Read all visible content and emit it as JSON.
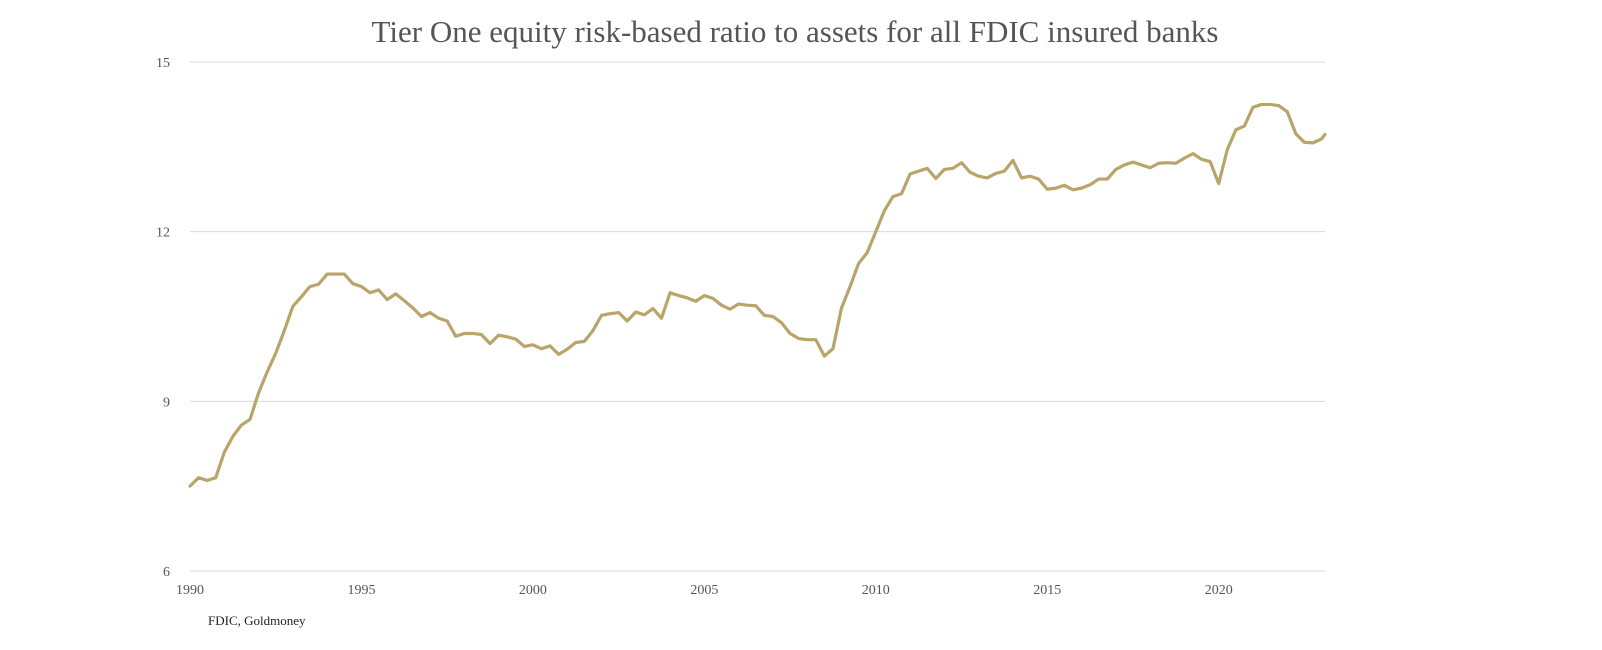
{
  "chart_data": {
    "type": "line",
    "title": "Tier One equity risk-based ratio to assets for all FDIC insured banks",
    "xlabel": "",
    "ylabel": "",
    "source": "FDIC, Goldmoney",
    "xlim": [
      1990,
      2023.1
    ],
    "ylim": [
      6,
      15
    ],
    "x_ticks": [
      1990,
      1995,
      2000,
      2005,
      2010,
      2015,
      2020
    ],
    "y_ticks": [
      6,
      9,
      12,
      15
    ],
    "grid": "horizontal",
    "legend": "none",
    "color": "#b9a46a",
    "series": [
      {
        "x": [
          1990.0,
          1990.25,
          1990.5,
          1990.75,
          1991.0,
          1991.25,
          1991.5,
          1991.75,
          1992.0,
          1992.25,
          1992.5,
          1992.75,
          1993.0,
          1993.25,
          1993.5,
          1993.75,
          1994.0,
          1994.25,
          1994.5,
          1994.75,
          1995.0,
          1995.25,
          1995.5,
          1995.75,
          1996.0,
          1996.25,
          1996.5,
          1996.75,
          1997.0,
          1997.25,
          1997.5,
          1997.75,
          1998.0,
          1998.25,
          1998.5,
          1998.75,
          1999.0,
          1999.25,
          1999.5,
          1999.75,
          2000.0,
          2000.25,
          2000.5,
          2000.75,
          2001.0,
          2001.25,
          2001.5,
          2001.75,
          2002.0,
          2002.25,
          2002.5,
          2002.75,
          2003.0,
          2003.25,
          2003.5,
          2003.75,
          2004.0,
          2004.25,
          2004.5,
          2004.75,
          2005.0,
          2005.25,
          2005.5,
          2005.75,
          2006.0,
          2006.25,
          2006.5,
          2006.75,
          2007.0,
          2007.25,
          2007.5,
          2007.75,
          2008.0,
          2008.25,
          2008.5,
          2008.75,
          2009.0,
          2009.25,
          2009.5,
          2009.75,
          2010.0,
          2010.25,
          2010.5,
          2010.75,
          2011.0,
          2011.25,
          2011.5,
          2011.75,
          2012.0,
          2012.25,
          2012.5,
          2012.75,
          2013.0,
          2013.25,
          2013.5,
          2013.75,
          2014.0,
          2014.25,
          2014.5,
          2014.75,
          2015.0,
          2015.25,
          2015.5,
          2015.75,
          2016.0,
          2016.25,
          2016.5,
          2016.75,
          2017.0,
          2017.25,
          2017.5,
          2017.75,
          2018.0,
          2018.25,
          2018.5,
          2018.75,
          2019.0,
          2019.25,
          2019.5,
          2019.75,
          2020.0,
          2020.25,
          2020.5,
          2020.75,
          2021.0,
          2021.25,
          2021.5,
          2021.75,
          2022.0,
          2022.25,
          2022.5,
          2022.75,
          2023.0,
          2023.1
        ],
        "values": [
          7.5,
          7.65,
          7.6,
          7.65,
          8.1,
          8.38,
          8.58,
          8.68,
          9.15,
          9.52,
          9.85,
          10.25,
          10.68,
          10.85,
          11.03,
          11.07,
          11.25,
          11.25,
          11.25,
          11.08,
          11.03,
          10.92,
          10.97,
          10.8,
          10.9,
          10.78,
          10.65,
          10.5,
          10.57,
          10.47,
          10.42,
          10.15,
          10.2,
          10.2,
          10.18,
          10.02,
          10.17,
          10.14,
          10.1,
          9.97,
          10.0,
          9.93,
          9.98,
          9.83,
          9.92,
          10.04,
          10.06,
          10.25,
          10.52,
          10.55,
          10.57,
          10.42,
          10.58,
          10.53,
          10.64,
          10.47,
          10.92,
          10.87,
          10.83,
          10.77,
          10.87,
          10.82,
          10.7,
          10.63,
          10.72,
          10.7,
          10.69,
          10.52,
          10.5,
          10.39,
          10.2,
          10.11,
          10.09,
          10.09,
          9.8,
          9.93,
          10.65,
          11.03,
          11.44,
          11.63,
          12.0,
          12.37,
          12.62,
          12.67,
          13.02,
          13.07,
          13.12,
          12.94,
          13.1,
          13.12,
          13.22,
          13.05,
          12.98,
          12.95,
          13.03,
          13.07,
          13.26,
          12.95,
          12.98,
          12.93,
          12.75,
          12.77,
          12.82,
          12.74,
          12.77,
          12.83,
          12.93,
          12.93,
          13.1,
          13.18,
          13.23,
          13.18,
          13.13,
          13.21,
          13.22,
          13.21,
          13.3,
          13.38,
          13.28,
          13.24,
          12.85,
          13.45,
          13.8,
          13.87,
          14.2,
          14.25,
          14.25,
          14.23,
          14.12,
          13.73,
          13.58,
          13.57,
          13.64,
          13.72
        ]
      }
    ]
  }
}
